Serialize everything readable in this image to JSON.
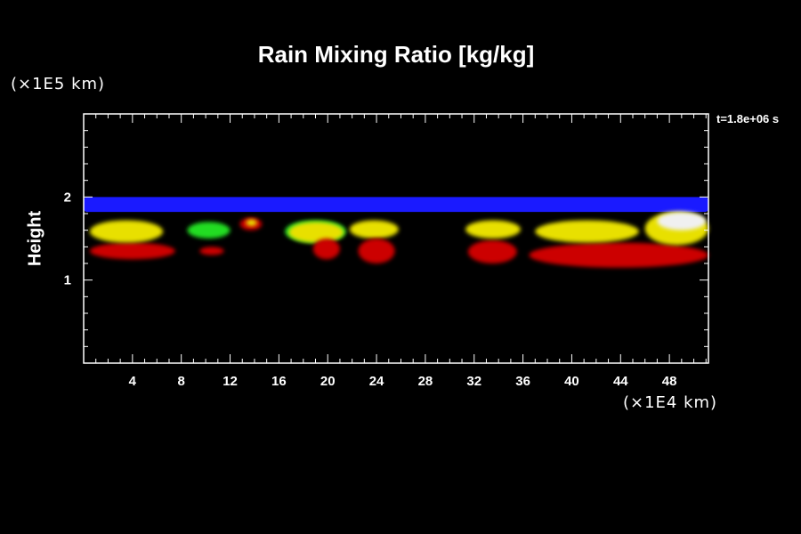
{
  "chart_data": {
    "type": "heatmap",
    "title": "Rain Mixing Ratio [kg/kg]",
    "ylabel": "Height",
    "xlabel": "",
    "x_multiplier": "(×1E4 km)",
    "y_multiplier": "(×1E5 km)",
    "time_label": "t=1.8e+06 s",
    "xlim": [
      0,
      51.2
    ],
    "ylim": [
      0,
      3
    ],
    "x_ticks": [
      4,
      8,
      12,
      16,
      20,
      24,
      28,
      32,
      36,
      40,
      44,
      48
    ],
    "y_ticks": [
      1,
      2
    ],
    "grid": false,
    "colors": {
      "background": "#000000",
      "blue": "#1a1aff",
      "green": "#22dd22",
      "yellow": "#e8e000",
      "red": "#cc0000",
      "white": "#f0f0f0"
    },
    "regions": [
      {
        "color": "blue",
        "x": [
          0,
          51.2
        ],
        "y": [
          1.82,
          2.0
        ]
      },
      {
        "color": "red",
        "x": [
          0.5,
          7.5
        ],
        "y": [
          1.25,
          1.45
        ]
      },
      {
        "color": "yellow",
        "x": [
          0.5,
          6.5
        ],
        "y": [
          1.45,
          1.72
        ]
      },
      {
        "color": "green",
        "x": [
          8.5,
          12
        ],
        "y": [
          1.5,
          1.7
        ]
      },
      {
        "color": "red",
        "x": [
          9.5,
          11.5
        ],
        "y": [
          1.3,
          1.4
        ]
      },
      {
        "color": "red",
        "x": [
          12.8,
          14.6
        ],
        "y": [
          1.6,
          1.75
        ]
      },
      {
        "color": "yellow",
        "x": [
          13.3,
          14.2
        ],
        "y": [
          1.65,
          1.73
        ]
      },
      {
        "color": "green",
        "x": [
          16.5,
          21.5
        ],
        "y": [
          1.45,
          1.72
        ]
      },
      {
        "color": "yellow",
        "x": [
          16.8,
          21.3
        ],
        "y": [
          1.45,
          1.7
        ]
      },
      {
        "color": "red",
        "x": [
          18.8,
          21
        ],
        "y": [
          1.25,
          1.5
        ]
      },
      {
        "color": "yellow",
        "x": [
          21.8,
          25.8
        ],
        "y": [
          1.5,
          1.72
        ]
      },
      {
        "color": "red",
        "x": [
          22.5,
          25.5
        ],
        "y": [
          1.2,
          1.5
        ]
      },
      {
        "color": "red",
        "x": [
          31.5,
          35.5
        ],
        "y": [
          1.2,
          1.48
        ]
      },
      {
        "color": "yellow",
        "x": [
          31.3,
          35.8
        ],
        "y": [
          1.5,
          1.72
        ]
      },
      {
        "color": "red",
        "x": [
          36.5,
          51.2
        ],
        "y": [
          1.15,
          1.45
        ]
      },
      {
        "color": "yellow",
        "x": [
          37,
          45.5
        ],
        "y": [
          1.45,
          1.72
        ]
      },
      {
        "color": "yellow",
        "x": [
          46,
          51.2
        ],
        "y": [
          1.42,
          1.82
        ]
      },
      {
        "color": "white",
        "x": [
          47,
          51
        ],
        "y": [
          1.6,
          1.82
        ]
      }
    ]
  }
}
